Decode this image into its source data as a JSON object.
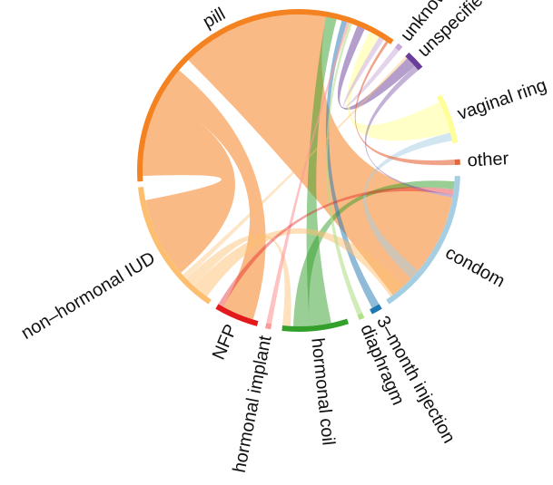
{
  "chart_data": {
    "type": "chord",
    "title": "",
    "sectors": [
      {
        "name": "pill",
        "color": "#f58220",
        "start_deg": -94,
        "end_deg": 36
      },
      {
        "name": "unknown",
        "color": "#c8a8d8",
        "start_deg": 38,
        "end_deg": 40
      },
      {
        "name": "unspecified IUD",
        "color": "#6a3d9a",
        "start_deg": 43,
        "end_deg": 50
      },
      {
        "name": "vaginal ring",
        "color": "#ffff99",
        "start_deg": 62,
        "end_deg": 80
      },
      {
        "name": "other",
        "color": "#e5663b",
        "start_deg": 86,
        "end_deg": 88
      },
      {
        "name": "condom",
        "color": "#a6cee3",
        "start_deg": 92,
        "end_deg": 146
      },
      {
        "name": "3–month injection",
        "color": "#1f78b4",
        "start_deg": 149,
        "end_deg": 153
      },
      {
        "name": "diaphragm",
        "color": "#b2df8a",
        "start_deg": 156,
        "end_deg": 158
      },
      {
        "name": "hormonal coil",
        "color": "#33a02c",
        "start_deg": 162,
        "end_deg": 186
      },
      {
        "name": "hormonal implant",
        "color": "#fb9a99",
        "start_deg": 190,
        "end_deg": 192
      },
      {
        "name": "NFP",
        "color": "#e31a1c",
        "start_deg": 195,
        "end_deg": 211
      },
      {
        "name": "non–hormonal IUD",
        "color": "#fdbf6f",
        "start_deg": 214,
        "end_deg": 264
      }
    ],
    "links": [
      {
        "from": "pill",
        "to": "condom",
        "color": "#f58220",
        "opacity": 0.55,
        "from_range": [
          -45,
          10
        ],
        "to_range": [
          100,
          143
        ]
      },
      {
        "from": "pill",
        "to": "non–hormonal IUD",
        "color": "#f58220",
        "opacity": 0.55,
        "from_range": [
          -92,
          -62
        ],
        "to_range": [
          229,
          259
        ]
      },
      {
        "from": "pill",
        "to": "NFP",
        "color": "#f58220",
        "opacity": 0.55,
        "from_range": [
          -62,
          -50
        ],
        "to_range": [
          197,
          209
        ]
      },
      {
        "from": "pill",
        "to": "hormonal coil",
        "color": "#33a02c",
        "opacity": 0.5,
        "from_range": [
          10,
          14
        ],
        "to_range": [
          168,
          176
        ]
      },
      {
        "from": "hormonal coil",
        "to": "condom",
        "color": "#33a02c",
        "opacity": 0.5,
        "from_range": [
          176,
          182
        ],
        "to_range": [
          94,
          97
        ]
      },
      {
        "from": "pill",
        "to": "unspecified IUD",
        "color": "#6a3d9a",
        "opacity": 0.5,
        "from_range": [
          22,
          25
        ],
        "to_range": [
          44,
          48
        ]
      },
      {
        "from": "pill",
        "to": "vaginal ring",
        "color": "#ffff99",
        "opacity": 0.55,
        "from_range": [
          27,
          31
        ],
        "to_range": [
          64,
          76
        ]
      },
      {
        "from": "condom",
        "to": "vaginal ring",
        "color": "#a6cee3",
        "opacity": 0.5,
        "from_range": [
          130,
          134
        ],
        "to_range": [
          76,
          79
        ]
      },
      {
        "from": "pill",
        "to": "3–month injection",
        "color": "#1f78b4",
        "opacity": 0.5,
        "from_range": [
          16,
          18
        ],
        "to_range": [
          149,
          152
        ]
      },
      {
        "from": "pill",
        "to": "unknown",
        "color": "#c8a8d8",
        "opacity": 0.5,
        "from_range": [
          31,
          33
        ],
        "to_range": [
          38,
          40
        ]
      },
      {
        "from": "non–hormonal IUD",
        "to": "condom",
        "color": "#fdbf6f",
        "opacity": 0.5,
        "from_range": [
          216,
          222
        ],
        "to_range": [
          138,
          144
        ]
      },
      {
        "from": "non–hormonal IUD",
        "to": "hormonal coil",
        "color": "#fdbf6f",
        "opacity": 0.45,
        "from_range": [
          222,
          226
        ],
        "to_range": [
          183,
          186
        ]
      },
      {
        "from": "hormonal implant",
        "to": "pill",
        "color": "#fb9a99",
        "opacity": 0.6,
        "from_range": [
          190,
          192
        ],
        "to_range": [
          18,
          19
        ]
      },
      {
        "from": "diaphragm",
        "to": "pill",
        "color": "#b2df8a",
        "opacity": 0.6,
        "from_range": [
          156,
          158
        ],
        "to_range": [
          19,
          20
        ]
      },
      {
        "from": "other",
        "to": "pill",
        "color": "#e5663b",
        "opacity": 0.6,
        "from_range": [
          86,
          88
        ],
        "to_range": [
          34,
          35
        ]
      },
      {
        "from": "NFP",
        "to": "condom",
        "color": "#e31a1c",
        "opacity": 0.4,
        "from_range": [
          209,
          211
        ],
        "to_range": [
          97,
          99
        ]
      },
      {
        "from": "unspecified IUD",
        "to": "condom",
        "color": "#6a3d9a",
        "opacity": 0.4,
        "from_range": [
          48,
          50
        ],
        "to_range": [
          99,
          100
        ]
      },
      {
        "from": "non–hormonal IUD",
        "to": "unspecified IUD",
        "color": "#fdbf6f",
        "opacity": 0.4,
        "from_range": [
          226,
          228
        ],
        "to_range": [
          43,
          44
        ]
      }
    ]
  }
}
